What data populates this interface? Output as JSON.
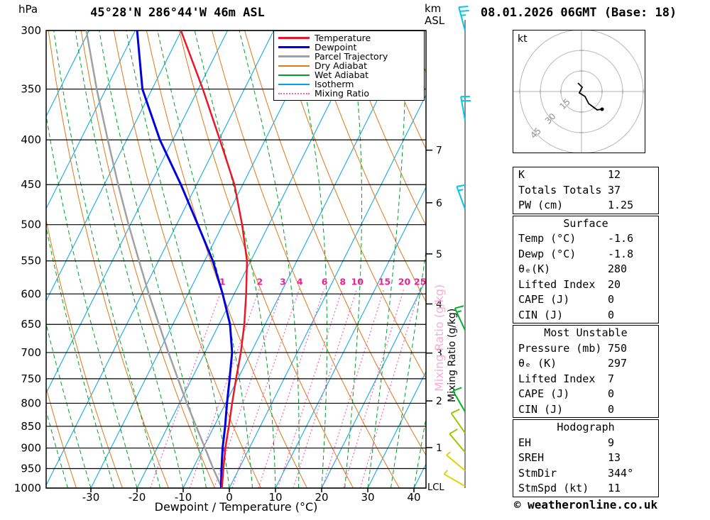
{
  "header": {
    "station_title": "45°28'N 286°44'W 46m ASL",
    "datetime_title": "08.01.2026 06GMT (Base: 18)",
    "pressure_unit": "hPa",
    "altitude_unit_line1": "km",
    "altitude_unit_line2": "ASL"
  },
  "axes": {
    "xlabel": "Dewpoint / Temperature (°C)",
    "right_label_black": "Mixing Ratio (g/kg)",
    "right_label_pink": "Mixing Ratio (g/kg)",
    "lcl_label": "LCL"
  },
  "legend": [
    {
      "label": "Temperature",
      "color": "#e81828",
      "dash": "solid",
      "width": 3
    },
    {
      "label": "Dewpoint",
      "color": "#0000dd",
      "dash": "solid",
      "width": 3
    },
    {
      "label": "Parcel Trajectory",
      "color": "#a0a0a0",
      "dash": "solid",
      "width": 3
    },
    {
      "label": "Dry Adiabat",
      "color": "#e07818",
      "dash": "solid",
      "width": 2
    },
    {
      "label": "Wet Adiabat",
      "color": "#00a028",
      "dash": "solid",
      "width": 2
    },
    {
      "label": "Isotherm",
      "color": "#00a2e8",
      "dash": "solid",
      "width": 2
    },
    {
      "label": "Mixing Ratio",
      "color": "#ff5fae",
      "dash": "dotted",
      "width": 2
    }
  ],
  "chart_data": {
    "type": "skewt-logp",
    "pressure_range_hpa": [
      300,
      1000
    ],
    "temp_range_c": [
      -40,
      43
    ],
    "pressure_ticks": [
      300,
      350,
      400,
      450,
      500,
      550,
      600,
      650,
      700,
      750,
      800,
      850,
      900,
      950,
      1000
    ],
    "temp_ticks": [
      -30,
      -20,
      -10,
      0,
      10,
      20,
      30,
      40
    ],
    "km_ticks": [
      {
        "km": 1,
        "hpa": 899
      },
      {
        "km": 2,
        "hpa": 795
      },
      {
        "km": 3,
        "hpa": 701
      },
      {
        "km": 4,
        "hpa": 616
      },
      {
        "km": 5,
        "hpa": 540
      },
      {
        "km": 6,
        "hpa": 472
      },
      {
        "km": 7,
        "hpa": 411
      }
    ],
    "mixing_ratio_values": [
      1,
      2,
      3,
      4,
      6,
      8,
      10,
      15,
      20,
      25
    ],
    "sounding": {
      "pressure_hpa": [
        1000,
        950,
        900,
        850,
        800,
        750,
        700,
        650,
        600,
        550,
        500,
        450,
        400,
        350,
        300
      ],
      "temperature_c": [
        -1.6,
        -3.4,
        -5.2,
        -6.8,
        -8.6,
        -10.4,
        -12.2,
        -14.5,
        -17.4,
        -20.8,
        -25.8,
        -31.8,
        -39.8,
        -49.0,
        -60.1
      ],
      "dewpoint_c": [
        -1.8,
        -3.8,
        -5.8,
        -7.6,
        -9.7,
        -11.8,
        -14.1,
        -17.6,
        -22.5,
        -28.2,
        -35.4,
        -43.4,
        -52.8,
        -62.1,
        -69.6
      ],
      "parcel_c": [
        -1.6,
        -5.6,
        -9.6,
        -13.9,
        -18.4,
        -23.0,
        -27.9,
        -33.0,
        -38.5,
        -44.2,
        -50.4,
        -57.0,
        -64.1,
        -72.0,
        -80.6
      ]
    },
    "wind_barbs": [
      {
        "pressure_hpa": 300,
        "speed_kt": 25,
        "dir_deg": 345,
        "color": "#00c8e8"
      },
      {
        "pressure_hpa": 380,
        "speed_kt": 20,
        "dir_deg": 350,
        "color": "#00c8e8"
      },
      {
        "pressure_hpa": 480,
        "speed_kt": 15,
        "dir_deg": 340,
        "color": "#00c8e8"
      },
      {
        "pressure_hpa": 660,
        "speed_kt": 15,
        "dir_deg": 335,
        "color": "#00b428"
      },
      {
        "pressure_hpa": 818,
        "speed_kt": 10,
        "dir_deg": 330,
        "color": "#00b428"
      },
      {
        "pressure_hpa": 865,
        "speed_kt": 10,
        "dir_deg": 325,
        "color": "#9cc800"
      },
      {
        "pressure_hpa": 910,
        "speed_kt": 10,
        "dir_deg": 320,
        "color": "#9cc800"
      },
      {
        "pressure_hpa": 955,
        "speed_kt": 5,
        "dir_deg": 310,
        "color": "#e0d400"
      },
      {
        "pressure_hpa": 995,
        "speed_kt": 5,
        "dir_deg": 300,
        "color": "#e0d400"
      }
    ],
    "colors": {
      "temperature": "#e81828",
      "dewpoint": "#0000dd",
      "parcel": "#a0a0a0",
      "dry_adiabat": "#e07818",
      "wet_adiabat": "#00a028",
      "isotherm": "#00a2e8",
      "mixing_ratio": "#ff5fae",
      "mixing_ratio_label": "#ee1f8e",
      "mixing_label_pink": "#ffaad2",
      "grid": "#000000",
      "wind_staff": "#666666"
    }
  },
  "hodograph": {
    "unit_label": "kt",
    "ring_radii_kt": [
      15,
      30,
      45
    ],
    "ring_labels": [
      "15",
      "30",
      "45"
    ],
    "trace_kt": [
      [
        -2.6,
        -6.2
      ],
      [
        0.5,
        -3.1
      ],
      [
        -1.6,
        1.0
      ],
      [
        2.6,
        3.6
      ],
      [
        5.2,
        8.8
      ],
      [
        11.4,
        13.4
      ],
      [
        15.0,
        12.9
      ]
    ]
  },
  "tables": [
    {
      "name": "summary-indices",
      "header": null,
      "rows": [
        [
          "K",
          "12"
        ],
        [
          "Totals Totals",
          "37"
        ],
        [
          "PW (cm)",
          "1.25"
        ]
      ]
    },
    {
      "name": "surface-indices",
      "header": "Surface",
      "rows": [
        [
          "Temp (°C)",
          "-1.6"
        ],
        [
          "Dewp (°C)",
          "-1.8"
        ],
        [
          "θₑ(K)",
          "280"
        ],
        [
          "Lifted Index",
          "20"
        ],
        [
          "CAPE (J)",
          "0"
        ],
        [
          "CIN (J)",
          "0"
        ]
      ]
    },
    {
      "name": "most-unstable-indices",
      "header": "Most Unstable",
      "rows": [
        [
          "Pressure (mb)",
          "750"
        ],
        [
          "θₑ (K)",
          "297"
        ],
        [
          "Lifted Index",
          "7"
        ],
        [
          "CAPE (J)",
          "0"
        ],
        [
          "CIN (J)",
          "0"
        ]
      ]
    },
    {
      "name": "hodograph-indices",
      "header": "Hodograph",
      "rows": [
        [
          "EH",
          "9"
        ],
        [
          "SREH",
          "13"
        ],
        [
          "StmDir",
          "344°"
        ],
        [
          "StmSpd (kt)",
          "11"
        ]
      ]
    }
  ],
  "footer": {
    "copyright": "© weatheronline.co.uk"
  }
}
